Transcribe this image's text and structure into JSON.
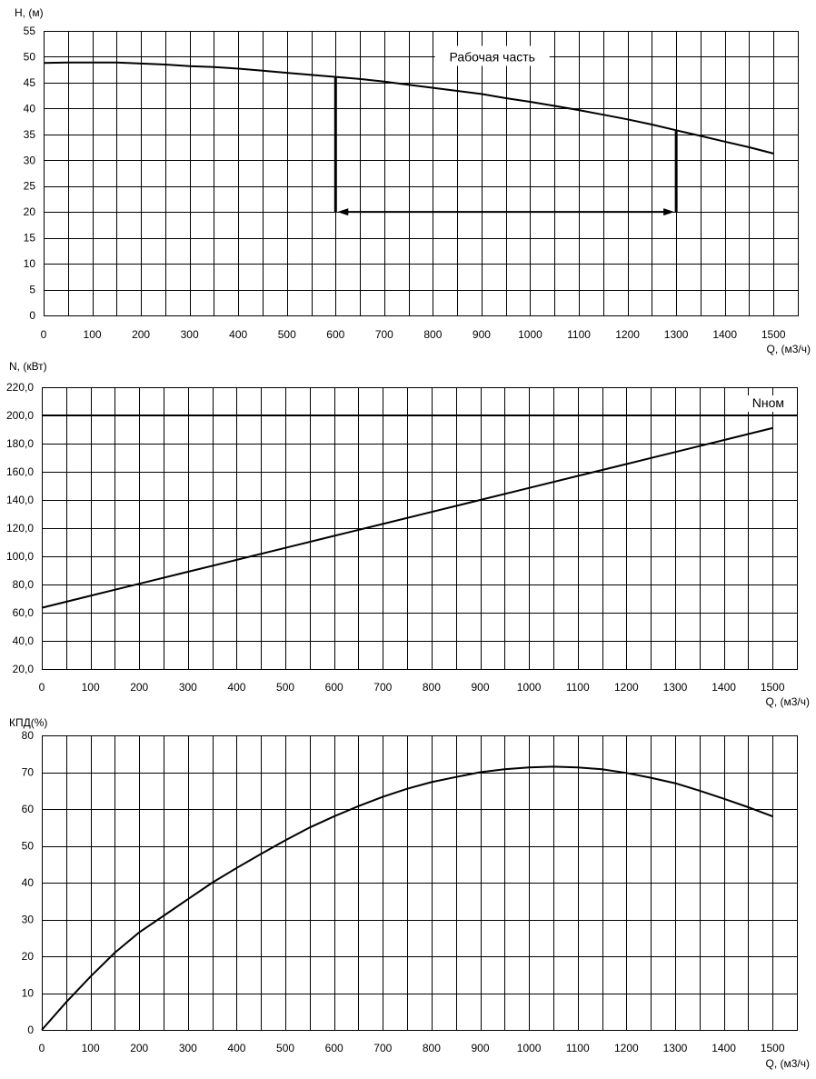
{
  "chart_data": [
    {
      "type": "line",
      "ylabel": "H, (м)",
      "xlabel": "Q, (м3/ч)",
      "xlim": [
        0,
        1550
      ],
      "ylim": [
        0,
        55
      ],
      "x_ticks": [
        "0",
        "100",
        "200",
        "300",
        "400",
        "500",
        "600",
        "700",
        "800",
        "900",
        "1000",
        "1100",
        "1200",
        "1300",
        "1400",
        "1500"
      ],
      "y_ticks": [
        "0",
        "5",
        "10",
        "15",
        "20",
        "25",
        "30",
        "35",
        "40",
        "45",
        "50",
        "55"
      ],
      "grid": true,
      "series": [
        {
          "x": [
            0,
            50,
            100,
            150,
            200,
            250,
            300,
            350,
            400,
            450,
            500,
            550,
            600,
            650,
            700,
            750,
            800,
            850,
            900,
            950,
            1000,
            1050,
            1100,
            1150,
            1200,
            1250,
            1300,
            1350,
            1400,
            1450,
            1500
          ],
          "values": [
            48.8,
            48.9,
            48.9,
            48.9,
            48.7,
            48.5,
            48.2,
            48.0,
            47.7,
            47.3,
            46.9,
            46.5,
            46.1,
            45.7,
            45.2,
            44.6,
            44.0,
            43.4,
            42.8,
            42.0,
            41.3,
            40.5,
            39.7,
            38.8,
            37.9,
            36.9,
            35.8,
            34.7,
            33.6,
            32.5,
            31.3
          ]
        }
      ],
      "operating_range": {
        "label": "Рабочая часть",
        "q_min": 600,
        "q_max": 1300,
        "arrow_at_h": 20
      }
    },
    {
      "type": "line",
      "ylabel": "N, (кВт)",
      "xlabel": "Q, (м3/ч)",
      "xlim": [
        0,
        1550
      ],
      "ylim": [
        20,
        220
      ],
      "x_ticks": [
        "0",
        "100",
        "200",
        "300",
        "400",
        "500",
        "600",
        "700",
        "800",
        "900",
        "1000",
        "1100",
        "1200",
        "1300",
        "1400",
        "1500"
      ],
      "y_ticks": [
        "20,0",
        "40,0",
        "60,0",
        "80,0",
        "100,0",
        "120,0",
        "140,0",
        "160,0",
        "180,0",
        "200,0",
        "220,0"
      ],
      "grid": true,
      "series": [
        {
          "x": [
            0,
            100,
            200,
            300,
            400,
            500,
            600,
            700,
            800,
            900,
            1000,
            1100,
            1200,
            1300,
            1400,
            1500
          ],
          "values": [
            63.5,
            72,
            80.5,
            89,
            97.5,
            106,
            114.5,
            123,
            131.5,
            140,
            148.5,
            157,
            165.5,
            174,
            182.5,
            191
          ]
        }
      ],
      "reference_line": {
        "label": "Nном",
        "value": 200
      }
    },
    {
      "type": "line",
      "ylabel": "КПД(%)",
      "xlabel": "Q, (м3/ч)",
      "xlim": [
        0,
        1550
      ],
      "ylim": [
        0,
        80
      ],
      "x_ticks": [
        "0",
        "100",
        "200",
        "300",
        "400",
        "500",
        "600",
        "700",
        "800",
        "900",
        "1000",
        "1100",
        "1200",
        "1300",
        "1400",
        "1500"
      ],
      "y_ticks": [
        "0",
        "10",
        "20",
        "30",
        "40",
        "50",
        "60",
        "70",
        "80"
      ],
      "grid": true,
      "series": [
        {
          "x": [
            0,
            50,
            100,
            150,
            200,
            250,
            300,
            350,
            400,
            450,
            500,
            550,
            600,
            650,
            700,
            750,
            800,
            850,
            900,
            950,
            1000,
            1050,
            1100,
            1150,
            1200,
            1250,
            1300,
            1350,
            1400,
            1450,
            1500
          ],
          "values": [
            0,
            7.5,
            14.5,
            21,
            26.5,
            31,
            35.5,
            40,
            44,
            47.8,
            51.5,
            55,
            58,
            60.8,
            63.3,
            65.5,
            67.3,
            68.7,
            70,
            70.8,
            71.3,
            71.5,
            71.3,
            70.8,
            69.8,
            68.5,
            67,
            65,
            62.8,
            60.5,
            58
          ]
        }
      ]
    }
  ]
}
